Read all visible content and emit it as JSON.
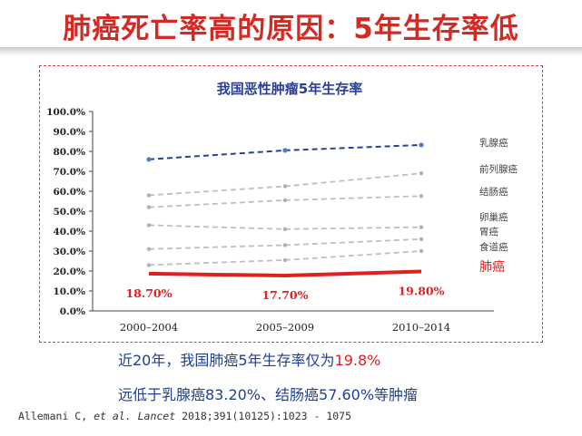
{
  "slide": {
    "title": "肺癌死亡率高的原因：5年生存率低"
  },
  "summary": {
    "line1_prefix": "近20年，我国肺癌5年生存率仅为",
    "line1_value": "19.8%",
    "line2": "远低于乳腺癌83.20%、结结肠癌57.60%等肿瘤"
  },
  "citation": {
    "authors": "Allemani C,",
    "etal": "et al.",
    "journal": "Lancet",
    "ref": "2018;391(10125):1023 - 1075"
  },
  "colors": {
    "title_red": "#d42a24",
    "lung_red": "#e01f1f",
    "breast_blue": "#2b3f9a",
    "breast_dot": "#4a7fd0",
    "gray_series": "#bfbfbf",
    "summary_blue": "#1f3f8f"
  },
  "chart_data": {
    "type": "line",
    "title": "我国恶性肿瘤5年生存率",
    "categories": [
      "2000–2004",
      "2005–2009",
      "2010–2014"
    ],
    "y_ticks": [
      "100.0%",
      "90.0%",
      "80.0%",
      "70.0%",
      "60.0%",
      "50.0%",
      "40.0%",
      "30.0%",
      "20.0%",
      "10.0%",
      "0.0%"
    ],
    "ylim": [
      0,
      100
    ],
    "grid": false,
    "legend": "inline-right",
    "series": [
      {
        "name": "乳腺癌",
        "values": [
          76,
          80.5,
          83.2
        ],
        "style": "breast"
      },
      {
        "name": "前列腺癌",
        "values": [
          58,
          62.5,
          69
        ],
        "style": "gray"
      },
      {
        "name": "结肠癌",
        "values": [
          52,
          55.5,
          57.6
        ],
        "style": "gray"
      },
      {
        "name": "卵巢癌",
        "values": [
          43,
          41,
          42
        ],
        "style": "gray"
      },
      {
        "name": "胃癌",
        "values": [
          31,
          33,
          36
        ],
        "style": "gray"
      },
      {
        "name": "食道癌",
        "values": [
          23,
          25.5,
          30
        ],
        "style": "gray"
      },
      {
        "name": "肺癌",
        "values": [
          18.7,
          17.7,
          19.8
        ],
        "style": "lung",
        "labels": [
          "18.70%",
          "17.70%",
          "19.80%"
        ]
      }
    ]
  }
}
